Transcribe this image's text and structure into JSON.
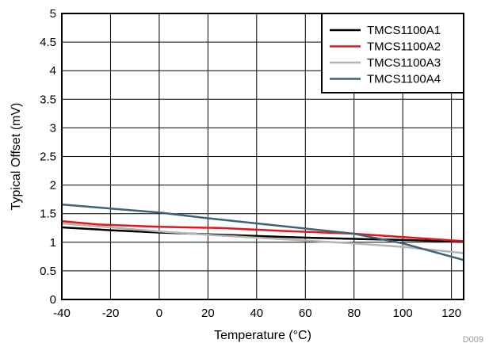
{
  "chart_data": {
    "type": "line",
    "xlabel": "Temperature (°C)",
    "ylabel": "Typical Offset (mV)",
    "xlim": [
      -40,
      125
    ],
    "ylim": [
      0,
      5
    ],
    "x_ticks": [
      -40,
      -20,
      0,
      20,
      40,
      60,
      80,
      100,
      120
    ],
    "x_tick_labels": [
      "-40",
      "-20",
      "0",
      "20",
      "40",
      "60",
      "80",
      "100",
      "120"
    ],
    "y_ticks": [
      0,
      0.5,
      1,
      1.5,
      2,
      2.5,
      3,
      3.5,
      4,
      4.5,
      5
    ],
    "y_tick_labels": [
      "0",
      "0.5",
      "1",
      "1.5",
      "2",
      "2.5",
      "3",
      "3.5",
      "4",
      "4.5",
      "5"
    ],
    "grid": true,
    "legend_position": "top-right",
    "footnote": "D009",
    "series": [
      {
        "name": "TMCS1100A1",
        "color": "#000000",
        "x": [
          -40,
          -20,
          0,
          20,
          40,
          60,
          80,
          100,
          125
        ],
        "y": [
          1.26,
          1.21,
          1.17,
          1.14,
          1.11,
          1.08,
          1.06,
          1.04,
          1.01
        ]
      },
      {
        "name": "TMCS1100A2",
        "color": "#e8141b",
        "x": [
          -40,
          -25,
          0,
          25,
          50,
          80,
          100,
          125
        ],
        "y": [
          1.37,
          1.31,
          1.27,
          1.25,
          1.2,
          1.15,
          1.09,
          1.02
        ]
      },
      {
        "name": "TMCS1100A3",
        "color": "#b4b4b4",
        "x": [
          -40,
          -20,
          0,
          20,
          40,
          60,
          80,
          100,
          125
        ],
        "y": [
          1.33,
          1.26,
          1.19,
          1.13,
          1.08,
          1.03,
          0.98,
          0.92,
          0.81
        ]
      },
      {
        "name": "TMCS1100A4",
        "color": "#3d6379",
        "x": [
          -40,
          -20,
          0,
          20,
          40,
          60,
          80,
          100,
          125
        ],
        "y": [
          1.66,
          1.59,
          1.52,
          1.42,
          1.33,
          1.24,
          1.15,
          0.98,
          0.69
        ]
      }
    ]
  }
}
